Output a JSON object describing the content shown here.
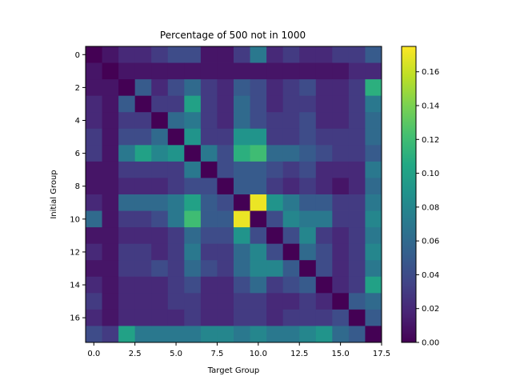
{
  "chart_data": {
    "type": "heatmap",
    "title": "Percentage of 500 not in 1000",
    "xlabel": "Target Group",
    "ylabel": "Initial Group",
    "x_ticks": [
      "0.0",
      "2.5",
      "5.0",
      "7.5",
      "10.0",
      "12.5",
      "15.0",
      "17.5"
    ],
    "y_ticks": [
      "0",
      "2",
      "4",
      "6",
      "8",
      "10",
      "12",
      "14",
      "16"
    ],
    "colorbar_ticks": [
      "0.00",
      "0.02",
      "0.04",
      "0.06",
      "0.08",
      "0.10",
      "0.12",
      "0.14",
      "0.16"
    ],
    "vmin": 0.0,
    "vmax": 0.175,
    "colormap": "viridis",
    "x_range": [
      -0.5,
      17.5
    ],
    "y_range": [
      17.5,
      -0.5
    ],
    "matrix": [
      [
        0.0,
        0.01,
        0.02,
        0.02,
        0.03,
        0.04,
        0.04,
        0.01,
        0.01,
        0.03,
        0.07,
        0.02,
        0.03,
        0.02,
        0.02,
        0.03,
        0.03,
        0.05
      ],
      [
        0.01,
        0.0,
        0.01,
        0.01,
        0.01,
        0.01,
        0.01,
        0.01,
        0.01,
        0.01,
        0.01,
        0.01,
        0.01,
        0.01,
        0.01,
        0.01,
        0.02,
        0.02
      ],
      [
        0.01,
        0.01,
        0.0,
        0.05,
        0.02,
        0.04,
        0.06,
        0.03,
        0.02,
        0.05,
        0.04,
        0.02,
        0.03,
        0.04,
        0.02,
        0.02,
        0.03,
        0.11
      ],
      [
        0.02,
        0.01,
        0.05,
        0.0,
        0.03,
        0.03,
        0.1,
        0.03,
        0.02,
        0.06,
        0.04,
        0.02,
        0.03,
        0.03,
        0.02,
        0.02,
        0.03,
        0.07
      ],
      [
        0.02,
        0.01,
        0.03,
        0.03,
        0.0,
        0.06,
        0.07,
        0.03,
        0.02,
        0.06,
        0.04,
        0.03,
        0.03,
        0.04,
        0.02,
        0.02,
        0.03,
        0.06
      ],
      [
        0.03,
        0.01,
        0.04,
        0.04,
        0.06,
        0.0,
        0.09,
        0.03,
        0.03,
        0.09,
        0.09,
        0.03,
        0.03,
        0.04,
        0.03,
        0.03,
        0.03,
        0.06
      ],
      [
        0.03,
        0.01,
        0.07,
        0.1,
        0.08,
        0.09,
        0.0,
        0.07,
        0.04,
        0.11,
        0.12,
        0.06,
        0.06,
        0.05,
        0.04,
        0.03,
        0.03,
        0.05
      ],
      [
        0.01,
        0.01,
        0.03,
        0.03,
        0.03,
        0.03,
        0.07,
        0.0,
        0.04,
        0.05,
        0.05,
        0.04,
        0.03,
        0.04,
        0.02,
        0.02,
        0.02,
        0.07
      ],
      [
        0.01,
        0.01,
        0.02,
        0.02,
        0.02,
        0.03,
        0.04,
        0.04,
        0.0,
        0.05,
        0.05,
        0.03,
        0.02,
        0.03,
        0.02,
        0.01,
        0.02,
        0.06
      ],
      [
        0.02,
        0.01,
        0.06,
        0.06,
        0.06,
        0.07,
        0.1,
        0.05,
        0.04,
        0.0,
        0.17,
        0.09,
        0.07,
        0.05,
        0.05,
        0.03,
        0.03,
        0.07
      ],
      [
        0.06,
        0.01,
        0.03,
        0.03,
        0.04,
        0.07,
        0.12,
        0.05,
        0.05,
        0.17,
        0.0,
        0.04,
        0.08,
        0.07,
        0.07,
        0.03,
        0.03,
        0.08
      ],
      [
        0.01,
        0.01,
        0.02,
        0.02,
        0.02,
        0.03,
        0.06,
        0.04,
        0.04,
        0.09,
        0.04,
        0.0,
        0.04,
        0.08,
        0.03,
        0.02,
        0.03,
        0.07
      ],
      [
        0.02,
        0.01,
        0.03,
        0.03,
        0.02,
        0.03,
        0.07,
        0.03,
        0.03,
        0.06,
        0.08,
        0.04,
        0.0,
        0.06,
        0.04,
        0.02,
        0.03,
        0.08
      ],
      [
        0.01,
        0.01,
        0.03,
        0.03,
        0.04,
        0.03,
        0.06,
        0.04,
        0.03,
        0.06,
        0.08,
        0.08,
        0.05,
        0.0,
        0.04,
        0.02,
        0.03,
        0.07
      ],
      [
        0.02,
        0.01,
        0.02,
        0.02,
        0.02,
        0.03,
        0.04,
        0.02,
        0.02,
        0.04,
        0.06,
        0.03,
        0.04,
        0.05,
        0.0,
        0.02,
        0.03,
        0.1
      ],
      [
        0.03,
        0.01,
        0.02,
        0.02,
        0.02,
        0.03,
        0.03,
        0.02,
        0.02,
        0.03,
        0.03,
        0.02,
        0.02,
        0.03,
        0.02,
        0.0,
        0.05,
        0.06
      ],
      [
        0.02,
        0.01,
        0.02,
        0.02,
        0.02,
        0.02,
        0.03,
        0.02,
        0.02,
        0.03,
        0.03,
        0.02,
        0.03,
        0.03,
        0.03,
        0.04,
        0.0,
        0.05
      ],
      [
        0.04,
        0.03,
        0.1,
        0.07,
        0.07,
        0.07,
        0.07,
        0.08,
        0.08,
        0.07,
        0.08,
        0.07,
        0.07,
        0.08,
        0.09,
        0.06,
        0.05,
        0.0
      ]
    ]
  }
}
